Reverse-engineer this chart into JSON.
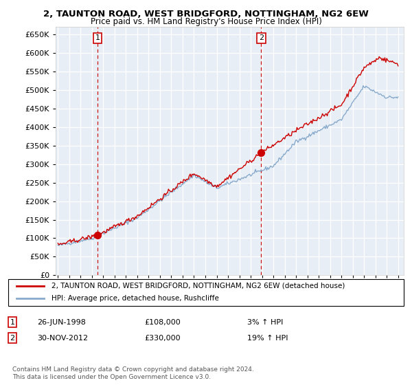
{
  "title1": "2, TAUNTON ROAD, WEST BRIDGFORD, NOTTINGHAM, NG2 6EW",
  "title2": "Price paid vs. HM Land Registry's House Price Index (HPI)",
  "sale1_date": 1998.49,
  "sale1_price": 108000,
  "sale1_label": "1",
  "sale1_date_str": "26-JUN-1998",
  "sale1_price_str": "£108,000",
  "sale1_hpi_str": "3% ↑ HPI",
  "sale2_date": 2012.92,
  "sale2_price": 330000,
  "sale2_label": "2",
  "sale2_date_str": "30-NOV-2012",
  "sale2_price_str": "£330,000",
  "sale2_hpi_str": "19% ↑ HPI",
  "ylim": [
    0,
    670000
  ],
  "xlim": [
    1994.8,
    2025.5
  ],
  "ylabel_ticks": [
    0,
    50000,
    100000,
    150000,
    200000,
    250000,
    300000,
    350000,
    400000,
    450000,
    500000,
    550000,
    600000,
    650000
  ],
  "xticks": [
    1995,
    1996,
    1997,
    1998,
    1999,
    2000,
    2001,
    2002,
    2003,
    2004,
    2005,
    2006,
    2007,
    2008,
    2009,
    2010,
    2011,
    2012,
    2013,
    2014,
    2015,
    2016,
    2017,
    2018,
    2019,
    2020,
    2021,
    2022,
    2023,
    2024,
    2025
  ],
  "plot_bg": "#e8eef5",
  "red_line_color": "#cc0000",
  "blue_line_color": "#88aacc",
  "legend_label1": "2, TAUNTON ROAD, WEST BRIDGFORD, NOTTINGHAM, NG2 6EW (detached house)",
  "legend_label2": "HPI: Average price, detached house, Rushcliffe",
  "footnote": "Contains HM Land Registry data © Crown copyright and database right 2024.\nThis data is licensed under the Open Government Licence v3.0."
}
